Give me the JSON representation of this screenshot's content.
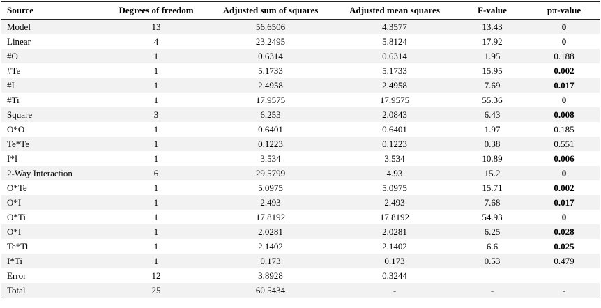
{
  "table": {
    "headers": [
      "Source",
      "Degrees of freedom",
      "Adjusted sum of squares",
      "Adjusted mean squares",
      "F-value",
      "pπ-value"
    ],
    "rows": [
      {
        "source": "Model",
        "df": "13",
        "ss": "56.6506",
        "ms": "4.3577",
        "f": "13.43",
        "p": "0",
        "p_bold": true
      },
      {
        "source": "Linear",
        "df": "4",
        "ss": "23.2495",
        "ms": "5.8124",
        "f": "17.92",
        "p": "0",
        "p_bold": true
      },
      {
        "source": "#O",
        "df": "1",
        "ss": "0.6314",
        "ms": "0.6314",
        "f": "1.95",
        "p": "0.188",
        "p_bold": false
      },
      {
        "source": "#Te",
        "df": "1",
        "ss": "5.1733",
        "ms": "5.1733",
        "f": "15.95",
        "p": "0.002",
        "p_bold": true
      },
      {
        "source": "#I",
        "df": "1",
        "ss": "2.4958",
        "ms": "2.4958",
        "f": "7.69",
        "p": "0.017",
        "p_bold": true
      },
      {
        "source": "#Ti",
        "df": "1",
        "ss": "17.9575",
        "ms": "17.9575",
        "f": "55.36",
        "p": "0",
        "p_bold": true
      },
      {
        "source": "Square",
        "df": "3",
        "ss": "6.253",
        "ms": "2.0843",
        "f": "6.43",
        "p": "0.008",
        "p_bold": true
      },
      {
        "source": "O*O",
        "df": "1",
        "ss": "0.6401",
        "ms": "0.6401",
        "f": "1.97",
        "p": "0.185",
        "p_bold": false
      },
      {
        "source": "Te*Te",
        "df": "1",
        "ss": "0.1223",
        "ms": "0.1223",
        "f": "0.38",
        "p": "0.551",
        "p_bold": false
      },
      {
        "source": "I*I",
        "df": "1",
        "ss": "3.534",
        "ms": "3.534",
        "f": "10.89",
        "p": "0.006",
        "p_bold": true
      },
      {
        "source": "2-Way Interaction",
        "df": "6",
        "ss": "29.5799",
        "ms": "4.93",
        "f": "15.2",
        "p": "0",
        "p_bold": true
      },
      {
        "source": "O*Te",
        "df": "1",
        "ss": "5.0975",
        "ms": "5.0975",
        "f": "15.71",
        "p": "0.002",
        "p_bold": true
      },
      {
        "source": "O*I",
        "df": "1",
        "ss": "2.493",
        "ms": "2.493",
        "f": "7.68",
        "p": "0.017",
        "p_bold": true
      },
      {
        "source": "O*Ti",
        "df": "1",
        "ss": "17.8192",
        "ms": "17.8192",
        "f": "54.93",
        "p": "0",
        "p_bold": true
      },
      {
        "source": "O*I",
        "df": "1",
        "ss": "2.0281",
        "ms": "2.0281",
        "f": "6.25",
        "p": "0.028",
        "p_bold": true
      },
      {
        "source": "Te*Ti",
        "df": "1",
        "ss": "2.1402",
        "ms": "2.1402",
        "f": "6.6",
        "p": "0.025",
        "p_bold": true
      },
      {
        "source": "I*Ti",
        "df": "1",
        "ss": "0.173",
        "ms": "0.173",
        "f": "0.53",
        "p": "0.479",
        "p_bold": false
      },
      {
        "source": "Error",
        "df": "12",
        "ss": "3.8928",
        "ms": "0.3244",
        "f": "",
        "p": "",
        "p_bold": false
      },
      {
        "source": "Total",
        "df": "25",
        "ss": "60.5434",
        "ms": "-",
        "f": "-",
        "p": "-",
        "p_bold": false
      }
    ]
  }
}
